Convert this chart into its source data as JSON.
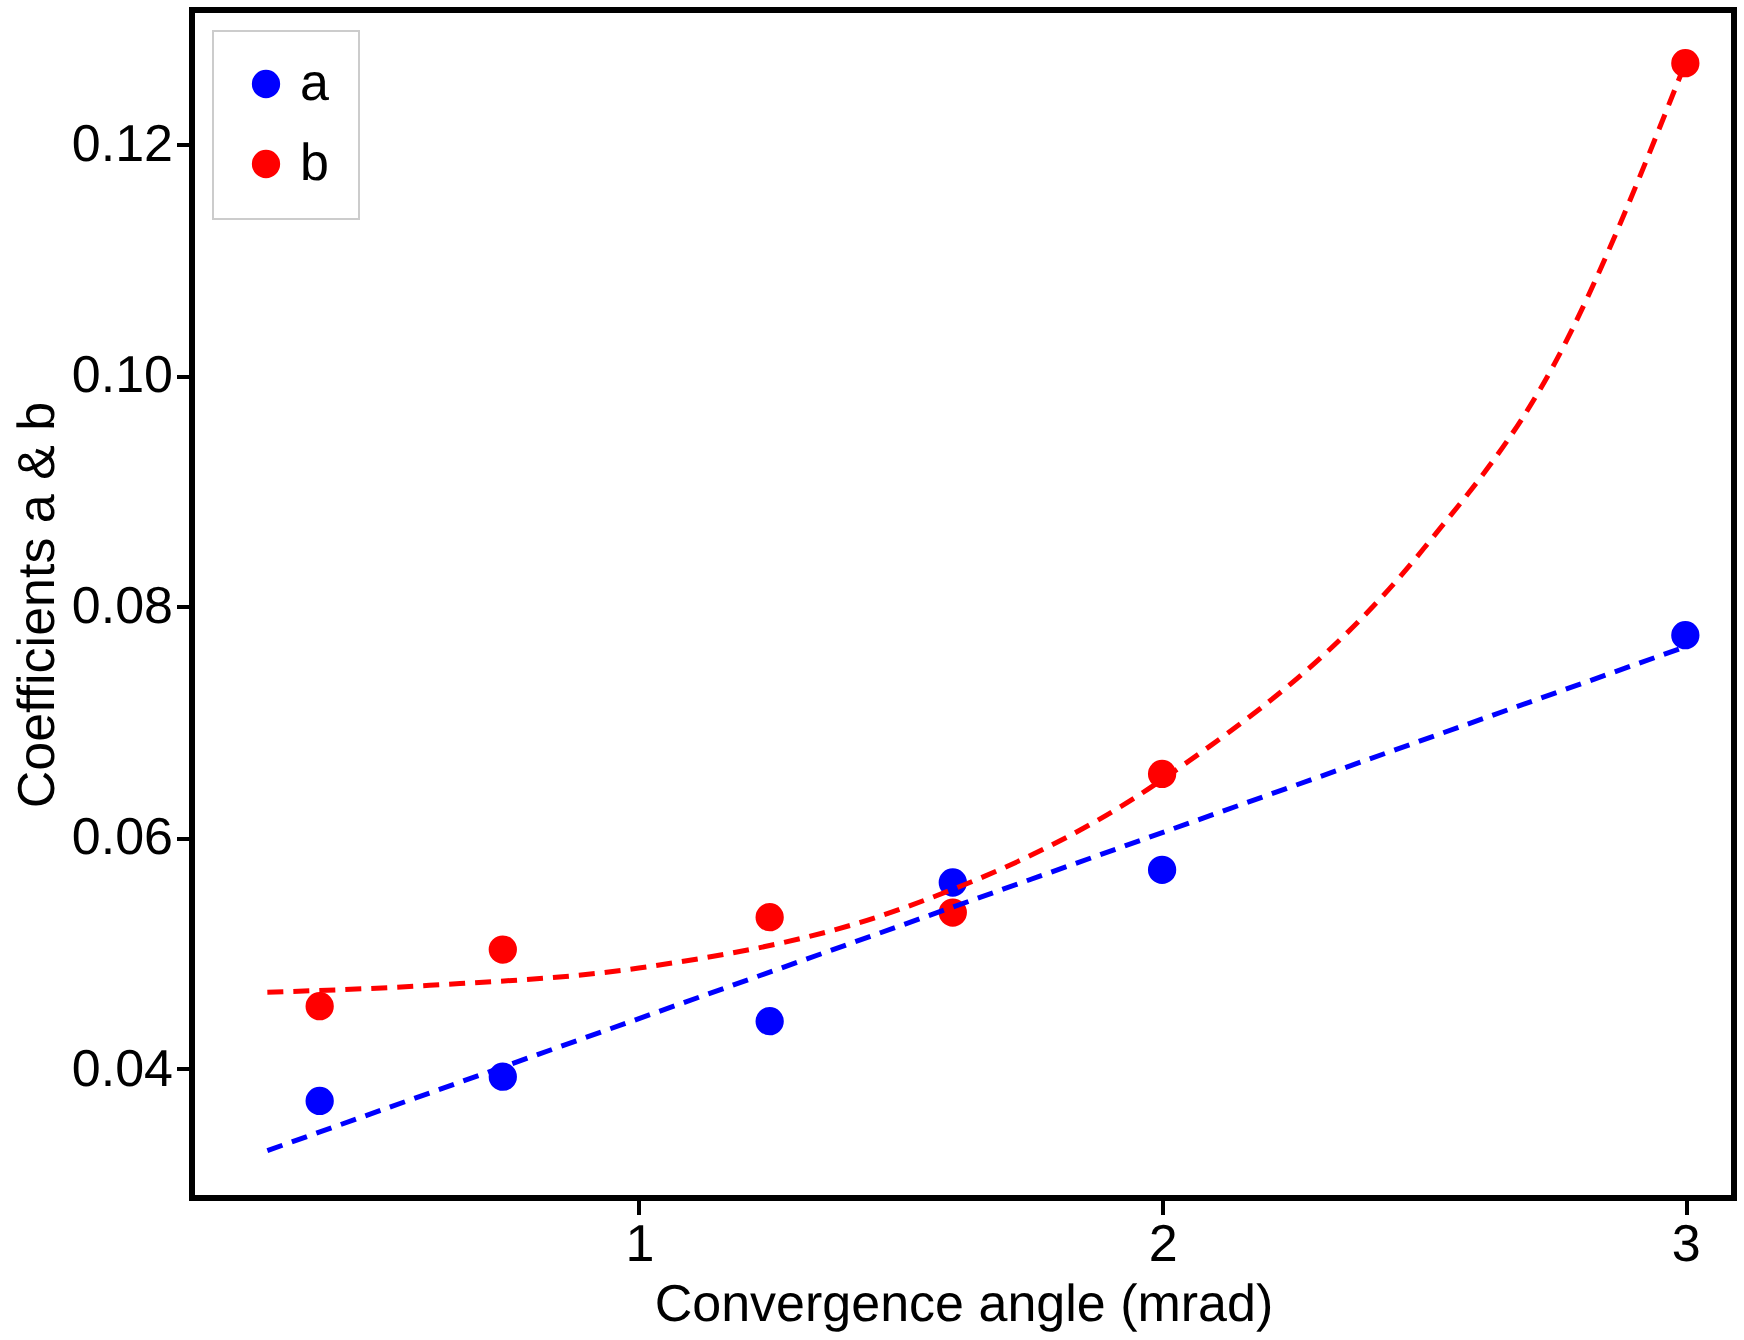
{
  "chart_data": {
    "type": "scatter",
    "xlabel": "Convergence angle (mrad)",
    "ylabel": "Coefficients a & b",
    "xlim": [
      0.146,
      3.093
    ],
    "ylim": [
      0.0288,
      0.1316
    ],
    "xticks": [
      1,
      2,
      3
    ],
    "yticks": [
      0.04,
      0.06,
      0.08,
      {
        "value": 0.1,
        "label": "0.10"
      },
      0.12
    ],
    "grid": false,
    "legend": "top left",
    "series": [
      {
        "name": "a",
        "marker": "circle",
        "color": "#0000ff",
        "x": [
          0.39,
          0.74,
          1.25,
          1.6,
          2.0,
          3.0
        ],
        "values": [
          0.0372,
          0.0393,
          0.0441,
          0.0561,
          0.0572,
          0.0775
        ]
      },
      {
        "name": "b",
        "marker": "circle",
        "color": "#ff0000",
        "x": [
          0.39,
          0.74,
          1.25,
          1.6,
          2.0,
          3.0
        ],
        "values": [
          0.0454,
          0.0503,
          0.0531,
          0.0535,
          0.0655,
          0.127
        ]
      },
      {
        "type": "line",
        "marker": "none",
        "line_style": "dashed",
        "color": "#0000ff",
        "x": [
          0.29,
          3.0
        ],
        "values": [
          0.0329,
          0.0765
        ]
      },
      {
        "type": "line",
        "marker": "none",
        "line_style": "dashed",
        "color": "#ff0000",
        "x": [
          0.29,
          0.6,
          1.0,
          1.5,
          2.0,
          2.5,
          2.75,
          3.0
        ],
        "values": [
          0.0466,
          0.0472,
          0.0487,
          0.0538,
          0.065,
          0.085,
          0.101,
          0.127
        ]
      }
    ]
  }
}
